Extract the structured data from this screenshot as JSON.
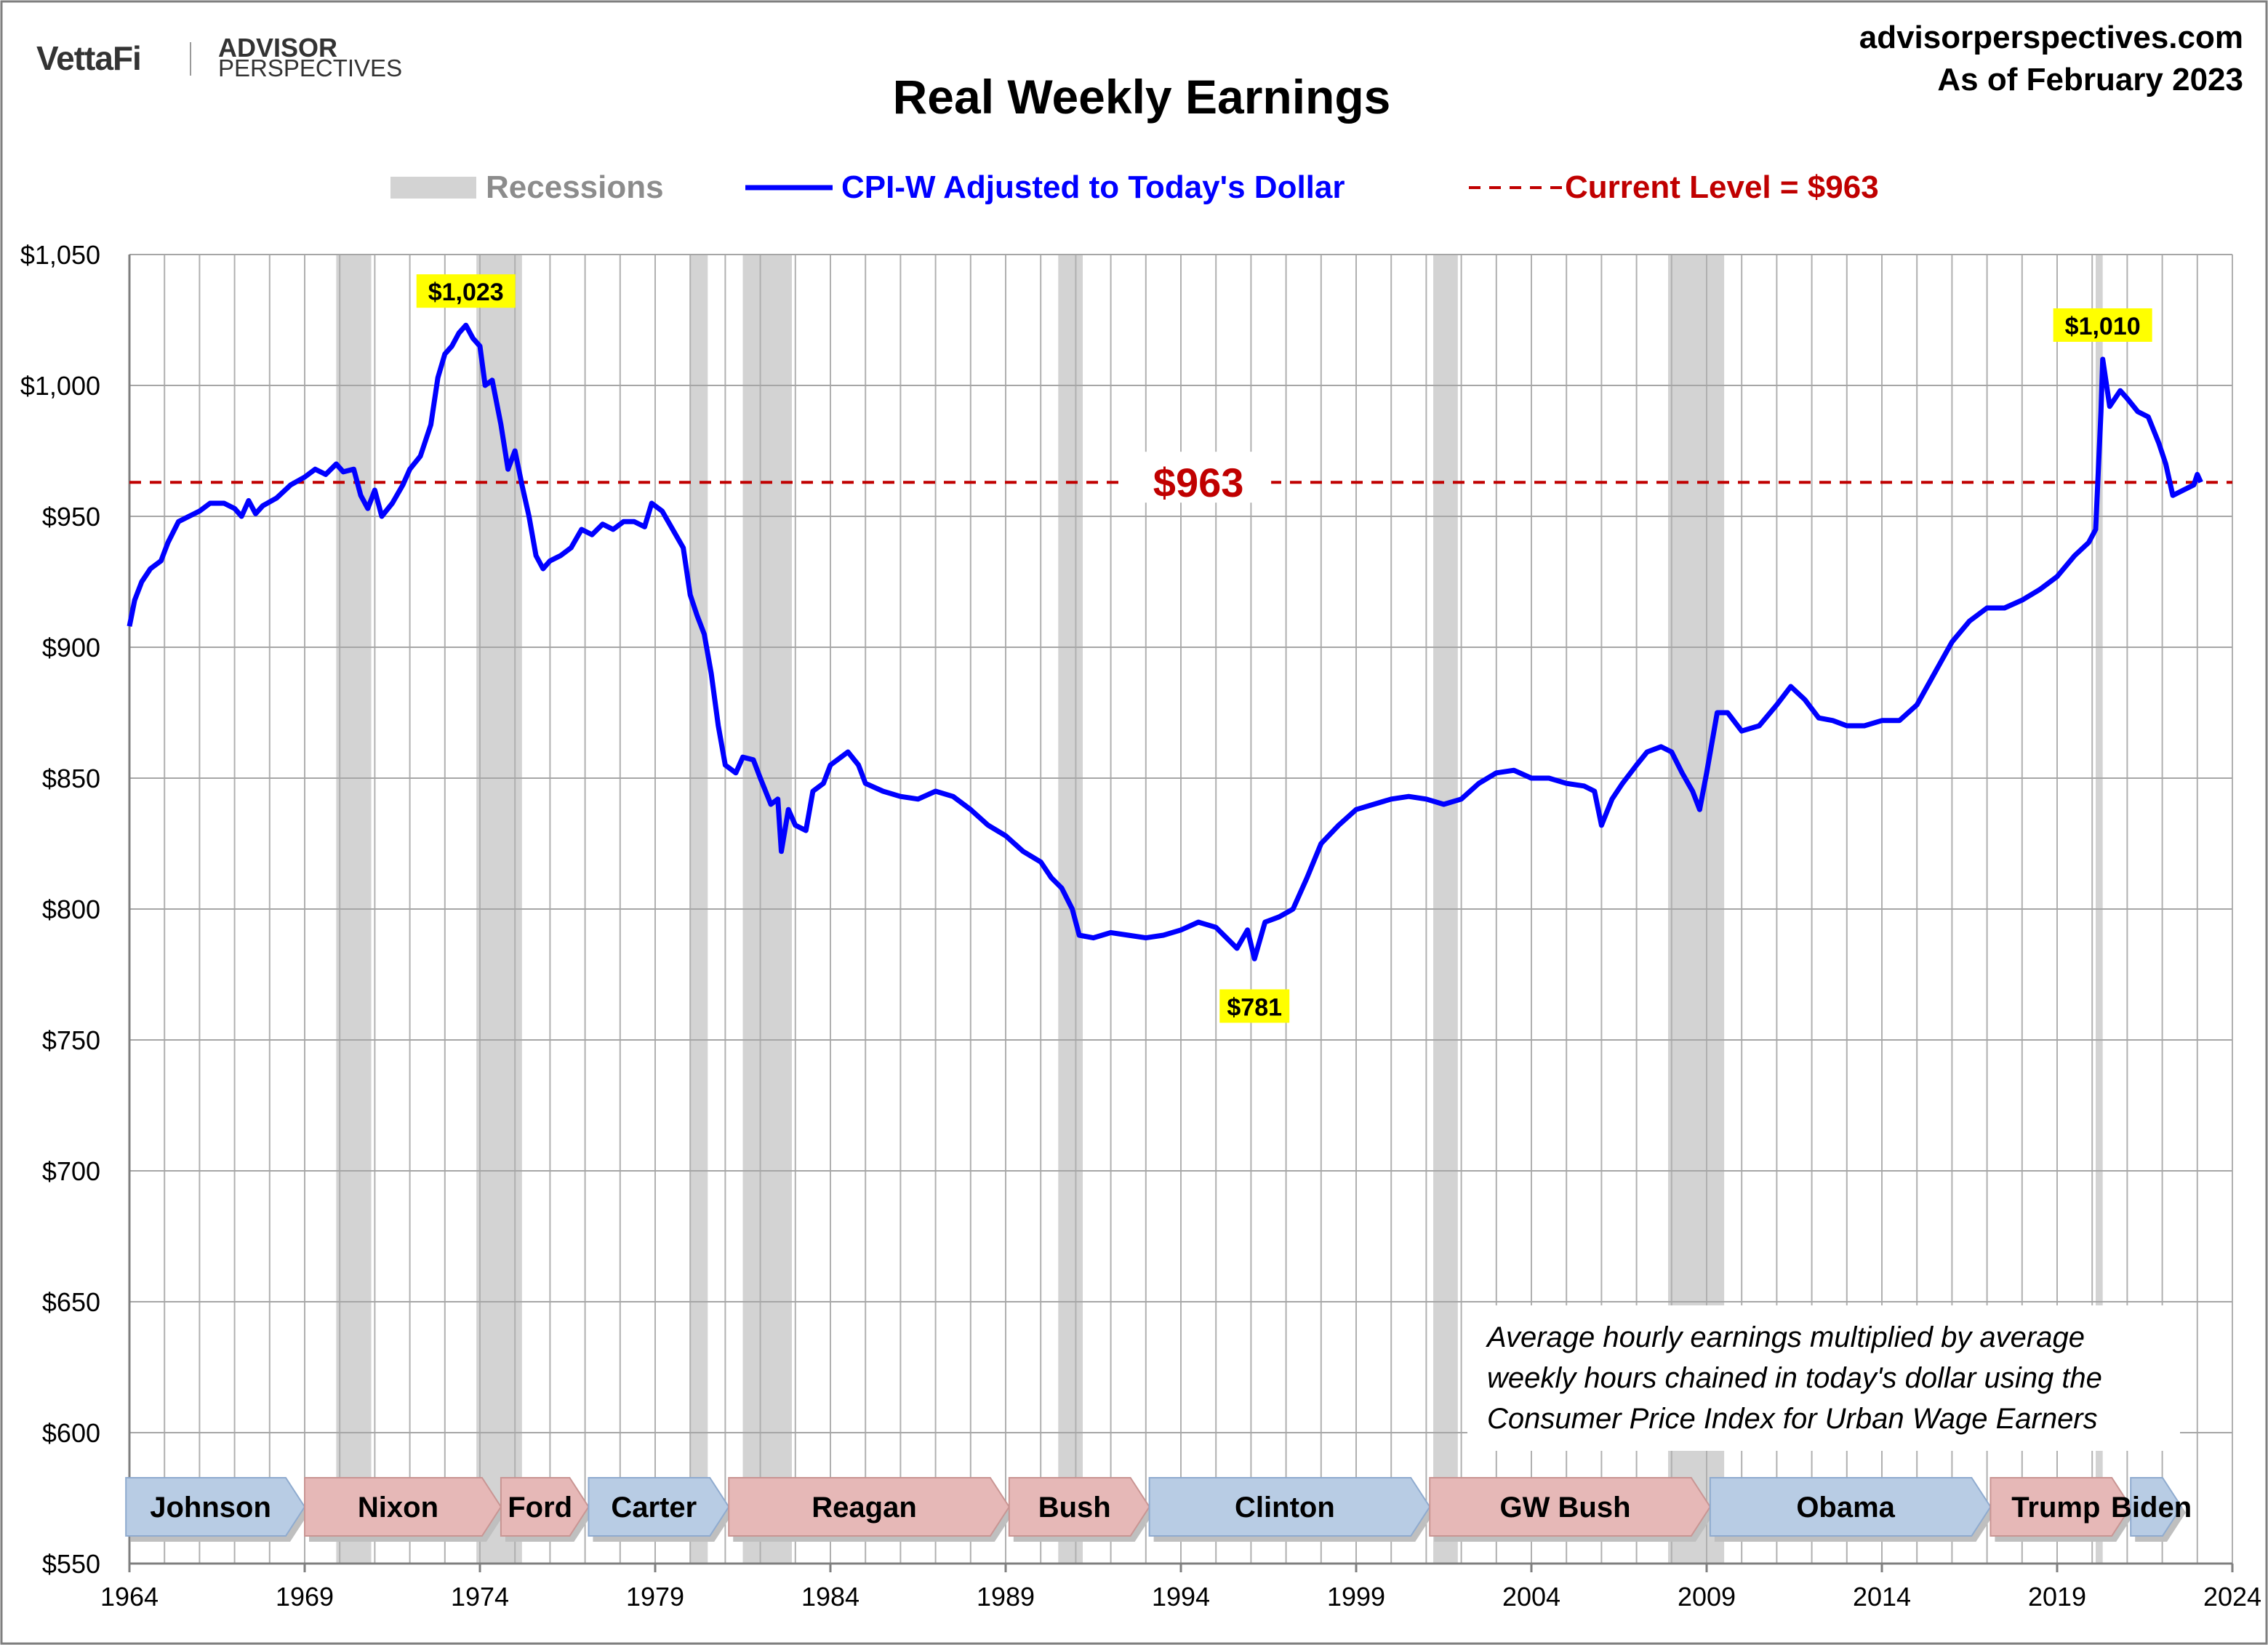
{
  "header": {
    "brand_left": "VettaFi",
    "brand_right_line1": "ADVISOR",
    "brand_right_line2": "PERSPECTIVES",
    "site": "advisorperspectives.com",
    "as_of": "As of February 2023"
  },
  "chart_data": {
    "type": "line",
    "title": "Real Weekly Earnings",
    "xlabel": "",
    "ylabel": "",
    "xlim": [
      1964,
      2024
    ],
    "ylim": [
      550,
      1050
    ],
    "x_ticks": [
      1964,
      1969,
      1974,
      1979,
      1984,
      1989,
      1994,
      1999,
      2004,
      2009,
      2014,
      2019,
      2024
    ],
    "y_ticks": [
      550,
      600,
      650,
      700,
      750,
      800,
      850,
      900,
      950,
      1000,
      1050
    ],
    "y_tick_labels": [
      "$550",
      "$600",
      "$650",
      "$700",
      "$750",
      "$800",
      "$850",
      "$900",
      "$950",
      "$1,000",
      "$1,050"
    ],
    "grid": "vertical lines every year, horizontal lines every $50",
    "legend": {
      "placement": "top-center",
      "recessions": "Recessions",
      "series": "CPI-W Adjusted to Today's Dollar",
      "current": "Current Level = $963"
    },
    "colors": {
      "series": "#0000ff",
      "current_level": "#c00000",
      "recession": "#d3d3d3",
      "peak_label_bg": "#ffff00"
    },
    "series": [
      {
        "name": "CPI-W Adjusted to Today's Dollar",
        "points": [
          [
            1964.0,
            908
          ],
          [
            1964.15,
            918
          ],
          [
            1964.35,
            925
          ],
          [
            1964.6,
            930
          ],
          [
            1964.9,
            933
          ],
          [
            1965.1,
            940
          ],
          [
            1965.4,
            948
          ],
          [
            1965.7,
            950
          ],
          [
            1966.0,
            952
          ],
          [
            1966.3,
            955
          ],
          [
            1966.7,
            955
          ],
          [
            1967.0,
            953
          ],
          [
            1967.2,
            950
          ],
          [
            1967.4,
            956
          ],
          [
            1967.6,
            951
          ],
          [
            1967.8,
            954
          ],
          [
            1968.2,
            957
          ],
          [
            1968.6,
            962
          ],
          [
            1969.0,
            965
          ],
          [
            1969.3,
            968
          ],
          [
            1969.6,
            966
          ],
          [
            1969.9,
            970
          ],
          [
            1970.1,
            967
          ],
          [
            1970.4,
            968
          ],
          [
            1970.6,
            958
          ],
          [
            1970.8,
            953
          ],
          [
            1971.0,
            960
          ],
          [
            1971.2,
            950
          ],
          [
            1971.5,
            955
          ],
          [
            1971.8,
            962
          ],
          [
            1972.0,
            968
          ],
          [
            1972.3,
            973
          ],
          [
            1972.6,
            985
          ],
          [
            1972.8,
            1003
          ],
          [
            1973.0,
            1012
          ],
          [
            1973.2,
            1015
          ],
          [
            1973.4,
            1020
          ],
          [
            1973.6,
            1023
          ],
          [
            1973.8,
            1018
          ],
          [
            1974.0,
            1015
          ],
          [
            1974.15,
            1000
          ],
          [
            1974.35,
            1002
          ],
          [
            1974.6,
            985
          ],
          [
            1974.8,
            968
          ],
          [
            1975.0,
            975
          ],
          [
            1975.2,
            962
          ],
          [
            1975.4,
            950
          ],
          [
            1975.6,
            935
          ],
          [
            1975.8,
            930
          ],
          [
            1976.0,
            933
          ],
          [
            1976.3,
            935
          ],
          [
            1976.6,
            938
          ],
          [
            1976.9,
            945
          ],
          [
            1977.2,
            943
          ],
          [
            1977.5,
            947
          ],
          [
            1977.8,
            945
          ],
          [
            1978.1,
            948
          ],
          [
            1978.4,
            948
          ],
          [
            1978.7,
            946
          ],
          [
            1978.9,
            955
          ],
          [
            1979.2,
            952
          ],
          [
            1979.5,
            945
          ],
          [
            1979.8,
            938
          ],
          [
            1980.0,
            920
          ],
          [
            1980.2,
            912
          ],
          [
            1980.4,
            905
          ],
          [
            1980.6,
            890
          ],
          [
            1980.8,
            870
          ],
          [
            1981.0,
            855
          ],
          [
            1981.3,
            852
          ],
          [
            1981.5,
            858
          ],
          [
            1981.8,
            857
          ],
          [
            1982.0,
            850
          ],
          [
            1982.3,
            840
          ],
          [
            1982.5,
            842
          ],
          [
            1982.6,
            822
          ],
          [
            1982.8,
            838
          ],
          [
            1983.0,
            832
          ],
          [
            1983.3,
            830
          ],
          [
            1983.5,
            845
          ],
          [
            1983.8,
            848
          ],
          [
            1984.0,
            855
          ],
          [
            1984.3,
            858
          ],
          [
            1984.5,
            860
          ],
          [
            1984.8,
            855
          ],
          [
            1985.0,
            848
          ],
          [
            1985.5,
            845
          ],
          [
            1986.0,
            843
          ],
          [
            1986.5,
            842
          ],
          [
            1987.0,
            845
          ],
          [
            1987.5,
            843
          ],
          [
            1988.0,
            838
          ],
          [
            1988.5,
            832
          ],
          [
            1989.0,
            828
          ],
          [
            1989.5,
            822
          ],
          [
            1990.0,
            818
          ],
          [
            1990.3,
            812
          ],
          [
            1990.6,
            808
          ],
          [
            1990.9,
            800
          ],
          [
            1991.1,
            790
          ],
          [
            1991.5,
            789
          ],
          [
            1992.0,
            791
          ],
          [
            1992.5,
            790
          ],
          [
            1993.0,
            789
          ],
          [
            1993.5,
            790
          ],
          [
            1994.0,
            792
          ],
          [
            1994.5,
            795
          ],
          [
            1995.0,
            793
          ],
          [
            1995.3,
            789
          ],
          [
            1995.6,
            785
          ],
          [
            1995.9,
            792
          ],
          [
            1996.1,
            781
          ],
          [
            1996.4,
            795
          ],
          [
            1996.8,
            797
          ],
          [
            1997.2,
            800
          ],
          [
            1997.6,
            812
          ],
          [
            1998.0,
            825
          ],
          [
            1998.5,
            832
          ],
          [
            1999.0,
            838
          ],
          [
            1999.5,
            840
          ],
          [
            2000.0,
            842
          ],
          [
            2000.5,
            843
          ],
          [
            2001.0,
            842
          ],
          [
            2001.5,
            840
          ],
          [
            2002.0,
            842
          ],
          [
            2002.5,
            848
          ],
          [
            2003.0,
            852
          ],
          [
            2003.5,
            853
          ],
          [
            2004.0,
            850
          ],
          [
            2004.5,
            850
          ],
          [
            2005.0,
            848
          ],
          [
            2005.5,
            847
          ],
          [
            2005.8,
            845
          ],
          [
            2006.0,
            832
          ],
          [
            2006.3,
            842
          ],
          [
            2006.6,
            848
          ],
          [
            2007.0,
            855
          ],
          [
            2007.3,
            860
          ],
          [
            2007.7,
            862
          ],
          [
            2008.0,
            860
          ],
          [
            2008.3,
            852
          ],
          [
            2008.6,
            845
          ],
          [
            2008.8,
            838
          ],
          [
            2009.0,
            852
          ],
          [
            2009.3,
            875
          ],
          [
            2009.6,
            875
          ],
          [
            2010.0,
            868
          ],
          [
            2010.5,
            870
          ],
          [
            2011.0,
            878
          ],
          [
            2011.4,
            885
          ],
          [
            2011.8,
            880
          ],
          [
            2012.2,
            873
          ],
          [
            2012.6,
            872
          ],
          [
            2013.0,
            870
          ],
          [
            2013.5,
            870
          ],
          [
            2014.0,
            872
          ],
          [
            2014.5,
            872
          ],
          [
            2015.0,
            878
          ],
          [
            2015.5,
            890
          ],
          [
            2016.0,
            902
          ],
          [
            2016.5,
            910
          ],
          [
            2017.0,
            915
          ],
          [
            2017.5,
            915
          ],
          [
            2018.0,
            918
          ],
          [
            2018.5,
            922
          ],
          [
            2019.0,
            927
          ],
          [
            2019.5,
            935
          ],
          [
            2019.9,
            940
          ],
          [
            2020.1,
            945
          ],
          [
            2020.25,
            990
          ],
          [
            2020.3,
            1010
          ],
          [
            2020.5,
            992
          ],
          [
            2020.8,
            998
          ],
          [
            2021.0,
            995
          ],
          [
            2021.3,
            990
          ],
          [
            2021.6,
            988
          ],
          [
            2021.9,
            978
          ],
          [
            2022.1,
            970
          ],
          [
            2022.3,
            958
          ],
          [
            2022.6,
            960
          ],
          [
            2022.9,
            962
          ],
          [
            2023.0,
            966
          ],
          [
            2023.1,
            963
          ]
        ]
      }
    ],
    "current_level": 963,
    "current_level_label": "$963",
    "recessions": [
      [
        1969.9,
        1970.9
      ],
      [
        1973.9,
        1975.2
      ],
      [
        1980.0,
        1980.5
      ],
      [
        1981.5,
        1982.9
      ],
      [
        1990.5,
        1991.2
      ],
      [
        2001.2,
        2001.9
      ],
      [
        2007.9,
        2009.5
      ],
      [
        2020.1,
        2020.3
      ]
    ],
    "annotations": [
      {
        "text": "$1,023",
        "x": 1973.6,
        "y": 1023
      },
      {
        "text": "$781",
        "x": 1996.1,
        "y": 781
      },
      {
        "text": "$1,010",
        "x": 2020.3,
        "y": 1010
      }
    ],
    "presidents": [
      {
        "name": "Johnson",
        "start": 1963.9,
        "end": 1969.0,
        "party": "D"
      },
      {
        "name": "Nixon",
        "start": 1969.0,
        "end": 1974.6,
        "party": "R"
      },
      {
        "name": "Ford",
        "start": 1974.6,
        "end": 1977.1,
        "party": "R"
      },
      {
        "name": "Carter",
        "start": 1977.1,
        "end": 1981.1,
        "party": "D"
      },
      {
        "name": "Reagan",
        "start": 1981.1,
        "end": 1989.1,
        "party": "R"
      },
      {
        "name": "Bush",
        "start": 1989.1,
        "end": 1993.1,
        "party": "R"
      },
      {
        "name": "Clinton",
        "start": 1993.1,
        "end": 2001.1,
        "party": "D"
      },
      {
        "name": "GW Bush",
        "start": 2001.1,
        "end": 2009.1,
        "party": "R"
      },
      {
        "name": "Obama",
        "start": 2009.1,
        "end": 2017.1,
        "party": "D"
      },
      {
        "name": "Trump",
        "start": 2017.1,
        "end": 2021.1,
        "party": "R"
      },
      {
        "name": "Biden",
        "start": 2021.1,
        "end": 2024.0,
        "party": "D"
      }
    ],
    "note_lines": [
      "Average hourly earnings multiplied by average",
      "weekly hours chained in today's dollar using the",
      "Consumer Price Index for Urban Wage Earners"
    ]
  }
}
